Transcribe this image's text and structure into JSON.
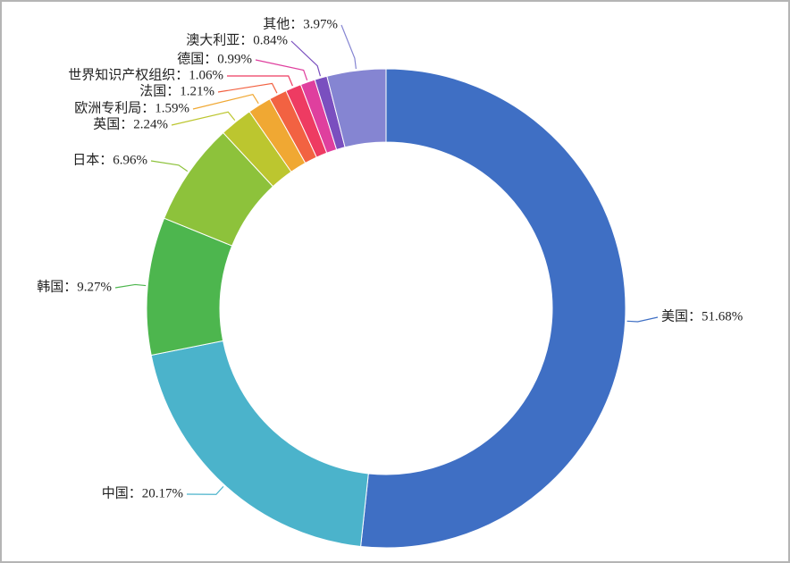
{
  "chart_data": {
    "type": "donut",
    "values": [
      51.68,
      20.17,
      9.27,
      6.96,
      2.24,
      1.59,
      1.21,
      1.06,
      0.99,
      0.84,
      3.97
    ],
    "value_labels": [
      "美国：51.68%",
      "中国：20.17%",
      "韩国：9.27%",
      "日本：6.96%",
      "英国：2.24%",
      "欧洲专利局：1.59%",
      "法国：1.21%",
      "世界知识产权组织：1.06%",
      "德国：0.99%",
      "澳大利亚：0.84%",
      "其他：3.97%"
    ],
    "colors": [
      "#3f6fc4",
      "#4bb3cb",
      "#4db64e",
      "#8dc23b",
      "#bcc62f",
      "#f0a833",
      "#f26242",
      "#ee3b62",
      "#df3f9e",
      "#7a4fbf",
      "#8585d2"
    ]
  }
}
